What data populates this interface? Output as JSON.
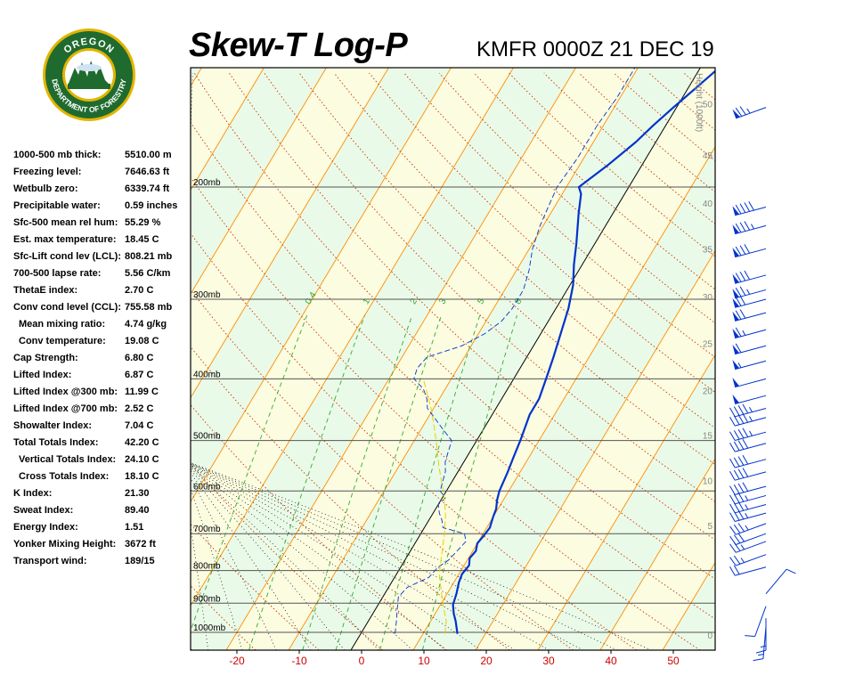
{
  "header": {
    "title": "Skew-T Log-P",
    "station_time": "KMFR 0000Z 21 DEC 19"
  },
  "logo": {
    "top_text": "OREGON",
    "bottom_text": "DEPARTMENT OF FORESTRY",
    "ring_color": "#1f6b2f",
    "ring_border": "#e2b400"
  },
  "indices": [
    {
      "label": "1000-500 mb thick:",
      "value": "5510.00 m"
    },
    {
      "label": "Freezing level:",
      "value": "7646.63 ft"
    },
    {
      "label": "Wetbulb zero:",
      "value": "6339.74 ft"
    },
    {
      "label": "Precipitable water:",
      "value": "0.59 inches"
    },
    {
      "label": "Sfc-500 mean rel hum:",
      "value": "55.29 %"
    },
    {
      "label": "Est. max temperature:",
      "value": "18.45 C"
    },
    {
      "label": "Sfc-Lift cond lev (LCL):",
      "value": "808.21 mb"
    },
    {
      "label": "700-500 lapse rate:",
      "value": "5.56 C/km"
    },
    {
      "label": "ThetaE index:",
      "value": "2.70 C"
    },
    {
      "label": "Conv cond level (CCL):",
      "value": "755.58 mb"
    },
    {
      "label": "Mean mixing ratio:",
      "value": "4.74 g/kg",
      "indent": true
    },
    {
      "label": "Conv temperature:",
      "value": "19.08 C",
      "indent": true
    },
    {
      "label": "Cap Strength:",
      "value": "6.80 C"
    },
    {
      "label": "Lifted Index:",
      "value": "6.87 C"
    },
    {
      "label": "Lifted Index @300 mb:",
      "value": "11.99 C"
    },
    {
      "label": "Lifted Index @700 mb:",
      "value": "2.52 C"
    },
    {
      "label": "Showalter Index:",
      "value": "7.04 C"
    },
    {
      "label": "Total Totals Index:",
      "value": "42.20 C"
    },
    {
      "label": "Vertical Totals Index:",
      "value": "24.10 C",
      "indent": true
    },
    {
      "label": "Cross Totals Index:",
      "value": "18.10 C",
      "indent": true
    },
    {
      "label": "K Index:",
      "value": "21.30"
    },
    {
      "label": "Sweat Index:",
      "value": "89.40"
    },
    {
      "label": "Energy Index:",
      "value": "1.51"
    },
    {
      "label": "Yonker Mixing Height:",
      "value": "3672 ft"
    },
    {
      "label": "Transport wind:",
      "value": "189/15"
    }
  ],
  "chart_data": {
    "type": "line",
    "title": "Skew-T Log-P",
    "xlabel": "",
    "ylabel": "",
    "xlim": [
      -28,
      56
    ],
    "x_ticks": [
      "-20",
      "-10",
      "0",
      "10",
      "20",
      "30",
      "40",
      "50"
    ],
    "x_tick_values": [
      -20,
      -10,
      0,
      10,
      20,
      30,
      40,
      50
    ],
    "pressure_levels": [
      {
        "label": "200mb",
        "p": 200
      },
      {
        "label": "300mb",
        "p": 300
      },
      {
        "label": "400mb",
        "p": 400
      },
      {
        "label": "500mb",
        "p": 500
      },
      {
        "label": "600mb",
        "p": 600
      },
      {
        "label": "700mb",
        "p": 700
      },
      {
        "label": "800mb",
        "p": 800
      },
      {
        "label": "900mb",
        "p": 900
      },
      {
        "label": "1000mb",
        "p": 1000
      }
    ],
    "height_axis_label": "Height (1000ft)",
    "height_ticks": [
      {
        "label": "50",
        "p": 148
      },
      {
        "label": "45",
        "p": 178
      },
      {
        "label": "40",
        "p": 212
      },
      {
        "label": "35",
        "p": 250
      },
      {
        "label": "30",
        "p": 297
      },
      {
        "label": "25",
        "p": 352
      },
      {
        "label": "20",
        "p": 417
      },
      {
        "label": "15",
        "p": 490
      },
      {
        "label": "10",
        "p": 578
      },
      {
        "label": "5",
        "p": 680
      },
      {
        "label": "0",
        "p": 1010
      }
    ],
    "mixing_ratio_labels": [
      "0.4",
      "1",
      "2",
      "3",
      "5",
      "8"
    ],
    "colors": {
      "temperature": "#0033cc",
      "dewpoint": "#0033cc",
      "parcel": "#e8d000",
      "isotherm": "#ff8c00",
      "dry_adiabat": "#cc3300",
      "moist_adiabat": "#000000",
      "mixing_ratio": "#33aa33",
      "zero_isotherm": "#000000",
      "tick_labels": "#cc0000",
      "band_green": "#eafae8",
      "band_yellow": "#fbfce0"
    },
    "series": [
      {
        "name": "Temperature",
        "style": "solid",
        "points": [
          [
            1005,
            15.5
          ],
          [
            960,
            14.0
          ],
          [
            935,
            13.0
          ],
          [
            905,
            12.0
          ],
          [
            870,
            11.5
          ],
          [
            835,
            10.8
          ],
          [
            810,
            10.5
          ],
          [
            785,
            10.8
          ],
          [
            765,
            10.2
          ],
          [
            745,
            10.5
          ],
          [
            725,
            10.0
          ],
          [
            705,
            10.3
          ],
          [
            685,
            10.5
          ],
          [
            660,
            10.0
          ],
          [
            640,
            9.7
          ],
          [
            620,
            9.0
          ],
          [
            600,
            8.5
          ],
          [
            560,
            8.0
          ],
          [
            530,
            7.5
          ],
          [
            500,
            7.0
          ],
          [
            455,
            6.0
          ],
          [
            430,
            6.0
          ],
          [
            400,
            5.2
          ],
          [
            370,
            4.3
          ],
          [
            335,
            3.0
          ],
          [
            310,
            2.0
          ],
          [
            285,
            0.5
          ],
          [
            265,
            -1.3
          ],
          [
            245,
            -3.0
          ],
          [
            220,
            -5.5
          ],
          [
            205,
            -7.0
          ],
          [
            200,
            -8.0
          ],
          [
            185,
            -5.5
          ],
          [
            170,
            -3.2
          ],
          [
            160,
            -2.0
          ],
          [
            150,
            -0.5
          ],
          [
            140,
            1.2
          ],
          [
            130,
            3.0
          ]
        ]
      },
      {
        "name": "Dewpoint",
        "style": "dashed",
        "points": [
          [
            1005,
            5.5
          ],
          [
            960,
            4.5
          ],
          [
            920,
            3.5
          ],
          [
            880,
            2.5
          ],
          [
            850,
            3.0
          ],
          [
            820,
            5.5
          ],
          [
            790,
            6.0
          ],
          [
            770,
            7.0
          ],
          [
            745,
            7.5
          ],
          [
            720,
            8.0
          ],
          [
            700,
            7.0
          ],
          [
            685,
            3.0
          ],
          [
            665,
            2.0
          ],
          [
            650,
            1.0
          ],
          [
            630,
            0.0
          ],
          [
            615,
            0.5
          ],
          [
            600,
            -1.0
          ],
          [
            580,
            -1.5
          ],
          [
            560,
            -2.0
          ],
          [
            540,
            -3.0
          ],
          [
            520,
            -3.5
          ],
          [
            500,
            -4.0
          ],
          [
            480,
            -6.5
          ],
          [
            460,
            -9.0
          ],
          [
            445,
            -11.0
          ],
          [
            430,
            -12.0
          ],
          [
            415,
            -13.5
          ],
          [
            400,
            -16.0
          ],
          [
            385,
            -16.5
          ],
          [
            370,
            -16.0
          ],
          [
            355,
            -11.5
          ],
          [
            340,
            -9.0
          ],
          [
            325,
            -7.5
          ],
          [
            310,
            -7.0
          ],
          [
            290,
            -7.0
          ],
          [
            270,
            -8.0
          ],
          [
            250,
            -9.5
          ],
          [
            230,
            -10.5
          ],
          [
            215,
            -11.0
          ],
          [
            200,
            -11.5
          ],
          [
            180,
            -11.0
          ],
          [
            160,
            -11.0
          ],
          [
            145,
            -10.5
          ],
          [
            130,
            -10.5
          ]
        ]
      },
      {
        "name": "Parcel",
        "style": "solid-thin",
        "points": [
          [
            1005,
            13.5
          ],
          [
            960,
            12.5
          ],
          [
            920,
            11.0
          ],
          [
            880,
            9.5
          ],
          [
            840,
            8.0
          ],
          [
            808,
            6.8
          ],
          [
            760,
            5.5
          ],
          [
            700,
            3.8
          ],
          [
            650,
            2.0
          ],
          [
            600,
            -0.5
          ],
          [
            550,
            -3.5
          ],
          [
            500,
            -6.5
          ],
          [
            450,
            -10.0
          ],
          [
            400,
            -14.5
          ]
        ]
      }
    ],
    "wind_barbs": [
      {
        "p": 150,
        "dir": 250,
        "speed": 75
      },
      {
        "p": 215,
        "dir": 255,
        "speed": 90
      },
      {
        "p": 230,
        "dir": 255,
        "speed": 85
      },
      {
        "p": 250,
        "dir": 255,
        "speed": 80
      },
      {
        "p": 275,
        "dir": 255,
        "speed": 80
      },
      {
        "p": 290,
        "dir": 255,
        "speed": 75
      },
      {
        "p": 300,
        "dir": 255,
        "speed": 70
      },
      {
        "p": 315,
        "dir": 255,
        "speed": 70
      },
      {
        "p": 335,
        "dir": 255,
        "speed": 65
      },
      {
        "p": 355,
        "dir": 255,
        "speed": 60
      },
      {
        "p": 375,
        "dir": 255,
        "speed": 55
      },
      {
        "p": 400,
        "dir": 255,
        "speed": 50
      },
      {
        "p": 425,
        "dir": 255,
        "speed": 50
      },
      {
        "p": 445,
        "dir": 255,
        "speed": 45
      },
      {
        "p": 460,
        "dir": 255,
        "speed": 45
      },
      {
        "p": 485,
        "dir": 255,
        "speed": 45
      },
      {
        "p": 505,
        "dir": 255,
        "speed": 40
      },
      {
        "p": 535,
        "dir": 255,
        "speed": 40
      },
      {
        "p": 560,
        "dir": 255,
        "speed": 40
      },
      {
        "p": 590,
        "dir": 255,
        "speed": 40
      },
      {
        "p": 610,
        "dir": 255,
        "speed": 35
      },
      {
        "p": 630,
        "dir": 255,
        "speed": 35
      },
      {
        "p": 650,
        "dir": 255,
        "speed": 35
      },
      {
        "p": 675,
        "dir": 250,
        "speed": 35
      },
      {
        "p": 700,
        "dir": 250,
        "speed": 30
      },
      {
        "p": 720,
        "dir": 250,
        "speed": 25
      },
      {
        "p": 755,
        "dir": 250,
        "speed": 25
      },
      {
        "p": 790,
        "dir": 255,
        "speed": 20
      },
      {
        "p": 870,
        "dir": 40,
        "speed": 10
      },
      {
        "p": 910,
        "dir": 200,
        "speed": 10
      },
      {
        "p": 950,
        "dir": 180,
        "speed": 15
      },
      {
        "p": 980,
        "dir": 185,
        "speed": 15
      }
    ]
  }
}
